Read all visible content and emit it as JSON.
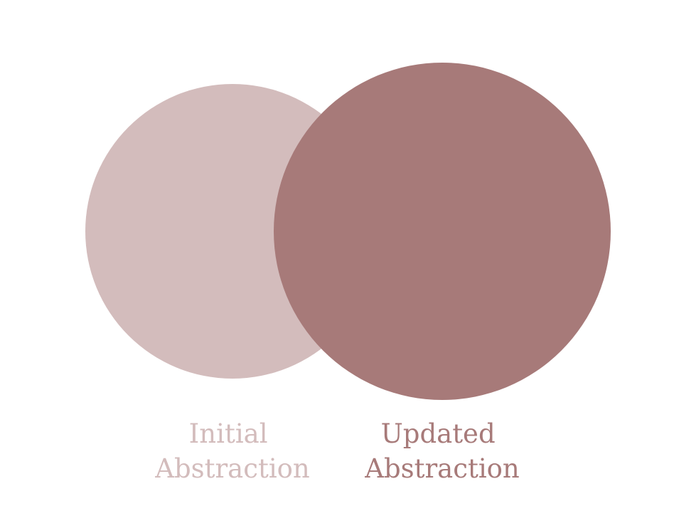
{
  "diagram": {
    "circles": [
      {
        "label_lines": [
          "Initial",
          "Abstraction"
        ],
        "fill": "#d3bcbc"
      },
      {
        "label_lines": [
          "Updated",
          "Abstraction"
        ],
        "fill": "#a77a79"
      }
    ]
  }
}
